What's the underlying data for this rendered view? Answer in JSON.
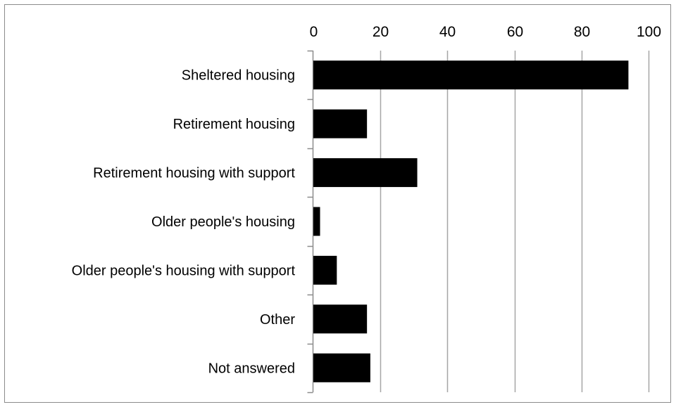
{
  "chart_data": {
    "type": "bar",
    "orientation": "horizontal",
    "categories": [
      "Sheltered housing",
      "Retirement housing",
      "Retirement housing with support",
      "Older people's housing",
      "Older people's housing with support",
      "Other",
      "Not answered"
    ],
    "values": [
      94,
      16,
      31,
      2,
      7,
      16,
      17
    ],
    "xlim": [
      0,
      100
    ],
    "xticks": [
      "0",
      "20",
      "40",
      "60",
      "80",
      "100"
    ],
    "x_axis_position": "top",
    "grid": "vertical",
    "legend": "none",
    "bar_color": "#000000",
    "grid_color": "#a6a6a6",
    "border_color": "#8c8c8c"
  }
}
